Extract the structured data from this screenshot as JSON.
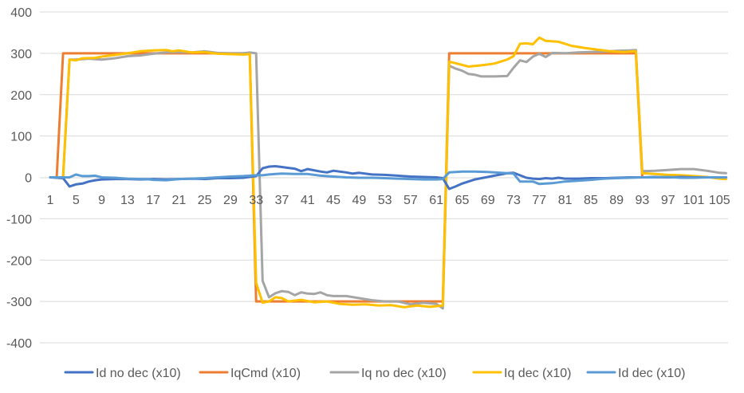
{
  "chart_data": {
    "type": "line",
    "title": "",
    "xlabel": "",
    "ylabel": "",
    "ylim": [
      -400,
      400
    ],
    "yticks": [
      400,
      300,
      200,
      100,
      0,
      -100,
      -200,
      -300,
      -400
    ],
    "grid": true,
    "legend_position": "bottom",
    "x_tick_labels": [
      "1",
      "5",
      "9",
      "13",
      "17",
      "21",
      "25",
      "29",
      "33",
      "37",
      "41",
      "45",
      "49",
      "53",
      "57",
      "61",
      "65",
      "69",
      "73",
      "77",
      "81",
      "85",
      "89",
      "93",
      "97",
      "101",
      "105"
    ],
    "x_range": [
      1,
      106
    ],
    "series_colors": {
      "id_no_dec": "#4472C4",
      "iqcmd": "#ED7D31",
      "iq_no_dec": "#A5A5A5",
      "iq_dec": "#FFC000",
      "id_dec": "#5B9BD5"
    },
    "series": [
      {
        "key": "iqcmd",
        "name": "IqCmd (x10)",
        "points": [
          [
            1,
            0
          ],
          [
            2,
            0
          ],
          [
            3,
            300
          ],
          [
            32,
            300
          ],
          [
            33,
            -300
          ],
          [
            62,
            -300
          ],
          [
            63,
            300
          ],
          [
            92,
            300
          ],
          [
            93,
            0
          ],
          [
            106,
            0
          ]
        ]
      },
      {
        "key": "iq_no_dec",
        "name": "Iq no dec (x10)",
        "points": [
          [
            1,
            0
          ],
          [
            2,
            0
          ],
          [
            3,
            0
          ],
          [
            4,
            285
          ],
          [
            5,
            285
          ],
          [
            7,
            287
          ],
          [
            9,
            285
          ],
          [
            11,
            288
          ],
          [
            13,
            293
          ],
          [
            15,
            295
          ],
          [
            17,
            299
          ],
          [
            19,
            302
          ],
          [
            21,
            303
          ],
          [
            23,
            302
          ],
          [
            25,
            305
          ],
          [
            27,
            301
          ],
          [
            29,
            300
          ],
          [
            31,
            300
          ],
          [
            32,
            302
          ],
          [
            33,
            300
          ],
          [
            34,
            -250
          ],
          [
            35,
            -290
          ],
          [
            36,
            -280
          ],
          [
            37,
            -275
          ],
          [
            38,
            -277
          ],
          [
            39,
            -285
          ],
          [
            40,
            -278
          ],
          [
            41,
            -281
          ],
          [
            42,
            -282
          ],
          [
            43,
            -278
          ],
          [
            44,
            -285
          ],
          [
            45,
            -287
          ],
          [
            47,
            -287
          ],
          [
            49,
            -292
          ],
          [
            51,
            -297
          ],
          [
            53,
            -300
          ],
          [
            55,
            -300
          ],
          [
            57,
            -307
          ],
          [
            59,
            -303
          ],
          [
            61,
            -306
          ],
          [
            62,
            -317
          ],
          [
            63,
            270
          ],
          [
            64,
            263
          ],
          [
            65,
            258
          ],
          [
            66,
            250
          ],
          [
            67,
            248
          ],
          [
            68,
            244
          ],
          [
            70,
            244
          ],
          [
            72,
            245
          ],
          [
            73,
            265
          ],
          [
            74,
            283
          ],
          [
            75,
            279
          ],
          [
            76,
            292
          ],
          [
            77,
            299
          ],
          [
            78,
            291
          ],
          [
            79,
            301
          ],
          [
            81,
            300
          ],
          [
            83,
            302
          ],
          [
            85,
            303
          ],
          [
            87,
            304
          ],
          [
            89,
            306
          ],
          [
            91,
            307
          ],
          [
            92,
            308
          ],
          [
            93,
            15
          ],
          [
            95,
            16
          ],
          [
            97,
            18
          ],
          [
            99,
            20
          ],
          [
            101,
            20
          ],
          [
            103,
            16
          ],
          [
            105,
            11
          ],
          [
            106,
            10
          ]
        ]
      },
      {
        "key": "iq_dec",
        "name": "Iq dec (x10)",
        "points": [
          [
            1,
            0
          ],
          [
            2,
            0
          ],
          [
            3,
            0
          ],
          [
            4,
            285
          ],
          [
            5,
            283
          ],
          [
            6,
            288
          ],
          [
            8,
            289
          ],
          [
            9,
            292
          ],
          [
            11,
            296
          ],
          [
            13,
            300
          ],
          [
            15,
            305
          ],
          [
            17,
            307
          ],
          [
            19,
            308
          ],
          [
            20,
            305
          ],
          [
            21,
            307
          ],
          [
            23,
            302
          ],
          [
            25,
            303
          ],
          [
            27,
            299
          ],
          [
            29,
            298
          ],
          [
            31,
            297
          ],
          [
            32,
            298
          ],
          [
            33,
            -255
          ],
          [
            34,
            -303
          ],
          [
            35,
            -300
          ],
          [
            36,
            -290
          ],
          [
            37,
            -292
          ],
          [
            38,
            -300
          ],
          [
            40,
            -296
          ],
          [
            42,
            -302
          ],
          [
            44,
            -300
          ],
          [
            46,
            -306
          ],
          [
            48,
            -308
          ],
          [
            50,
            -307
          ],
          [
            52,
            -310
          ],
          [
            54,
            -309
          ],
          [
            56,
            -314
          ],
          [
            58,
            -310
          ],
          [
            60,
            -313
          ],
          [
            62,
            -310
          ],
          [
            63,
            280
          ],
          [
            64,
            276
          ],
          [
            66,
            268
          ],
          [
            68,
            271
          ],
          [
            70,
            275
          ],
          [
            72,
            285
          ],
          [
            73,
            293
          ],
          [
            74,
            323
          ],
          [
            75,
            324
          ],
          [
            76,
            322
          ],
          [
            77,
            338
          ],
          [
            78,
            330
          ],
          [
            80,
            328
          ],
          [
            82,
            318
          ],
          [
            84,
            313
          ],
          [
            86,
            309
          ],
          [
            88,
            305
          ],
          [
            90,
            303
          ],
          [
            92,
            305
          ],
          [
            93,
            10
          ],
          [
            95,
            8
          ],
          [
            97,
            6
          ],
          [
            99,
            5
          ],
          [
            101,
            3
          ],
          [
            103,
            1
          ],
          [
            105,
            -3
          ],
          [
            106,
            -4
          ]
        ]
      },
      {
        "key": "id_no_dec",
        "name": "Id no dec (x10)",
        "points": [
          [
            1,
            0
          ],
          [
            3,
            -2
          ],
          [
            4,
            -22
          ],
          [
            5,
            -17
          ],
          [
            6,
            -15
          ],
          [
            7,
            -10
          ],
          [
            8,
            -7
          ],
          [
            9,
            -5
          ],
          [
            11,
            -4
          ],
          [
            13,
            -4
          ],
          [
            15,
            -5
          ],
          [
            17,
            -4
          ],
          [
            19,
            -5
          ],
          [
            21,
            -4
          ],
          [
            23,
            -3
          ],
          [
            25,
            -4
          ],
          [
            27,
            -2
          ],
          [
            29,
            -2
          ],
          [
            31,
            -1
          ],
          [
            33,
            3
          ],
          [
            34,
            22
          ],
          [
            35,
            26
          ],
          [
            36,
            27
          ],
          [
            37,
            25
          ],
          [
            38,
            23
          ],
          [
            39,
            21
          ],
          [
            40,
            15
          ],
          [
            41,
            20
          ],
          [
            43,
            14
          ],
          [
            44,
            12
          ],
          [
            45,
            16
          ],
          [
            47,
            12
          ],
          [
            48,
            9
          ],
          [
            49,
            11
          ],
          [
            51,
            7
          ],
          [
            53,
            6
          ],
          [
            55,
            4
          ],
          [
            57,
            2
          ],
          [
            59,
            1
          ],
          [
            61,
            0
          ],
          [
            62,
            -2
          ],
          [
            63,
            -28
          ],
          [
            64,
            -22
          ],
          [
            65,
            -15
          ],
          [
            66,
            -10
          ],
          [
            67,
            -5
          ],
          [
            68,
            -2
          ],
          [
            69,
            1
          ],
          [
            70,
            4
          ],
          [
            71,
            7
          ],
          [
            72,
            10
          ],
          [
            73,
            11
          ],
          [
            74,
            5
          ],
          [
            75,
            -1
          ],
          [
            76,
            -3
          ],
          [
            77,
            -4
          ],
          [
            78,
            -2
          ],
          [
            79,
            -3
          ],
          [
            80,
            -1
          ],
          [
            81,
            -3
          ],
          [
            83,
            -3
          ],
          [
            85,
            -2
          ],
          [
            87,
            -2
          ],
          [
            89,
            -1
          ],
          [
            91,
            0
          ],
          [
            93,
            0
          ],
          [
            95,
            1
          ],
          [
            97,
            0
          ],
          [
            99,
            1
          ],
          [
            101,
            0
          ],
          [
            103,
            0
          ],
          [
            105,
            0
          ],
          [
            106,
            0
          ]
        ]
      },
      {
        "key": "id_dec",
        "name": "Id dec (x10)",
        "points": [
          [
            1,
            0
          ],
          [
            3,
            0
          ],
          [
            4,
            0
          ],
          [
            5,
            7
          ],
          [
            6,
            3
          ],
          [
            7,
            3
          ],
          [
            8,
            4
          ],
          [
            9,
            0
          ],
          [
            11,
            -1
          ],
          [
            13,
            -3
          ],
          [
            15,
            -4
          ],
          [
            16,
            -4
          ],
          [
            17,
            -6
          ],
          [
            19,
            -7
          ],
          [
            21,
            -4
          ],
          [
            23,
            -3
          ],
          [
            25,
            -2
          ],
          [
            27,
            0
          ],
          [
            29,
            2
          ],
          [
            31,
            3
          ],
          [
            33,
            5
          ],
          [
            34,
            5
          ],
          [
            35,
            7
          ],
          [
            36,
            8
          ],
          [
            37,
            9
          ],
          [
            39,
            8
          ],
          [
            41,
            8
          ],
          [
            43,
            4
          ],
          [
            45,
            2
          ],
          [
            47,
            0
          ],
          [
            49,
            -1
          ],
          [
            51,
            -1
          ],
          [
            53,
            -2
          ],
          [
            55,
            -3
          ],
          [
            57,
            -4
          ],
          [
            59,
            -5
          ],
          [
            61,
            -5
          ],
          [
            62,
            -4
          ],
          [
            63,
            12
          ],
          [
            65,
            14
          ],
          [
            67,
            14
          ],
          [
            69,
            13
          ],
          [
            71,
            11
          ],
          [
            73,
            9
          ],
          [
            74,
            -10
          ],
          [
            76,
            -10
          ],
          [
            77,
            -16
          ],
          [
            79,
            -14
          ],
          [
            81,
            -10
          ],
          [
            83,
            -8
          ],
          [
            85,
            -6
          ],
          [
            87,
            -3
          ],
          [
            89,
            -2
          ],
          [
            91,
            -1
          ],
          [
            93,
            0
          ],
          [
            95,
            0
          ],
          [
            97,
            1
          ],
          [
            99,
            -1
          ],
          [
            101,
            -1
          ],
          [
            103,
            0
          ],
          [
            105,
            0
          ],
          [
            106,
            0
          ]
        ]
      }
    ],
    "legend": [
      {
        "key": "id_no_dec",
        "label": "Id no dec (x10)"
      },
      {
        "key": "iqcmd",
        "label": "IqCmd (x10)"
      },
      {
        "key": "iq_no_dec",
        "label": "Iq no dec (x10)"
      },
      {
        "key": "iq_dec",
        "label": "Iq dec (x10)"
      },
      {
        "key": "id_dec",
        "label": "Id dec (x10)"
      }
    ]
  }
}
